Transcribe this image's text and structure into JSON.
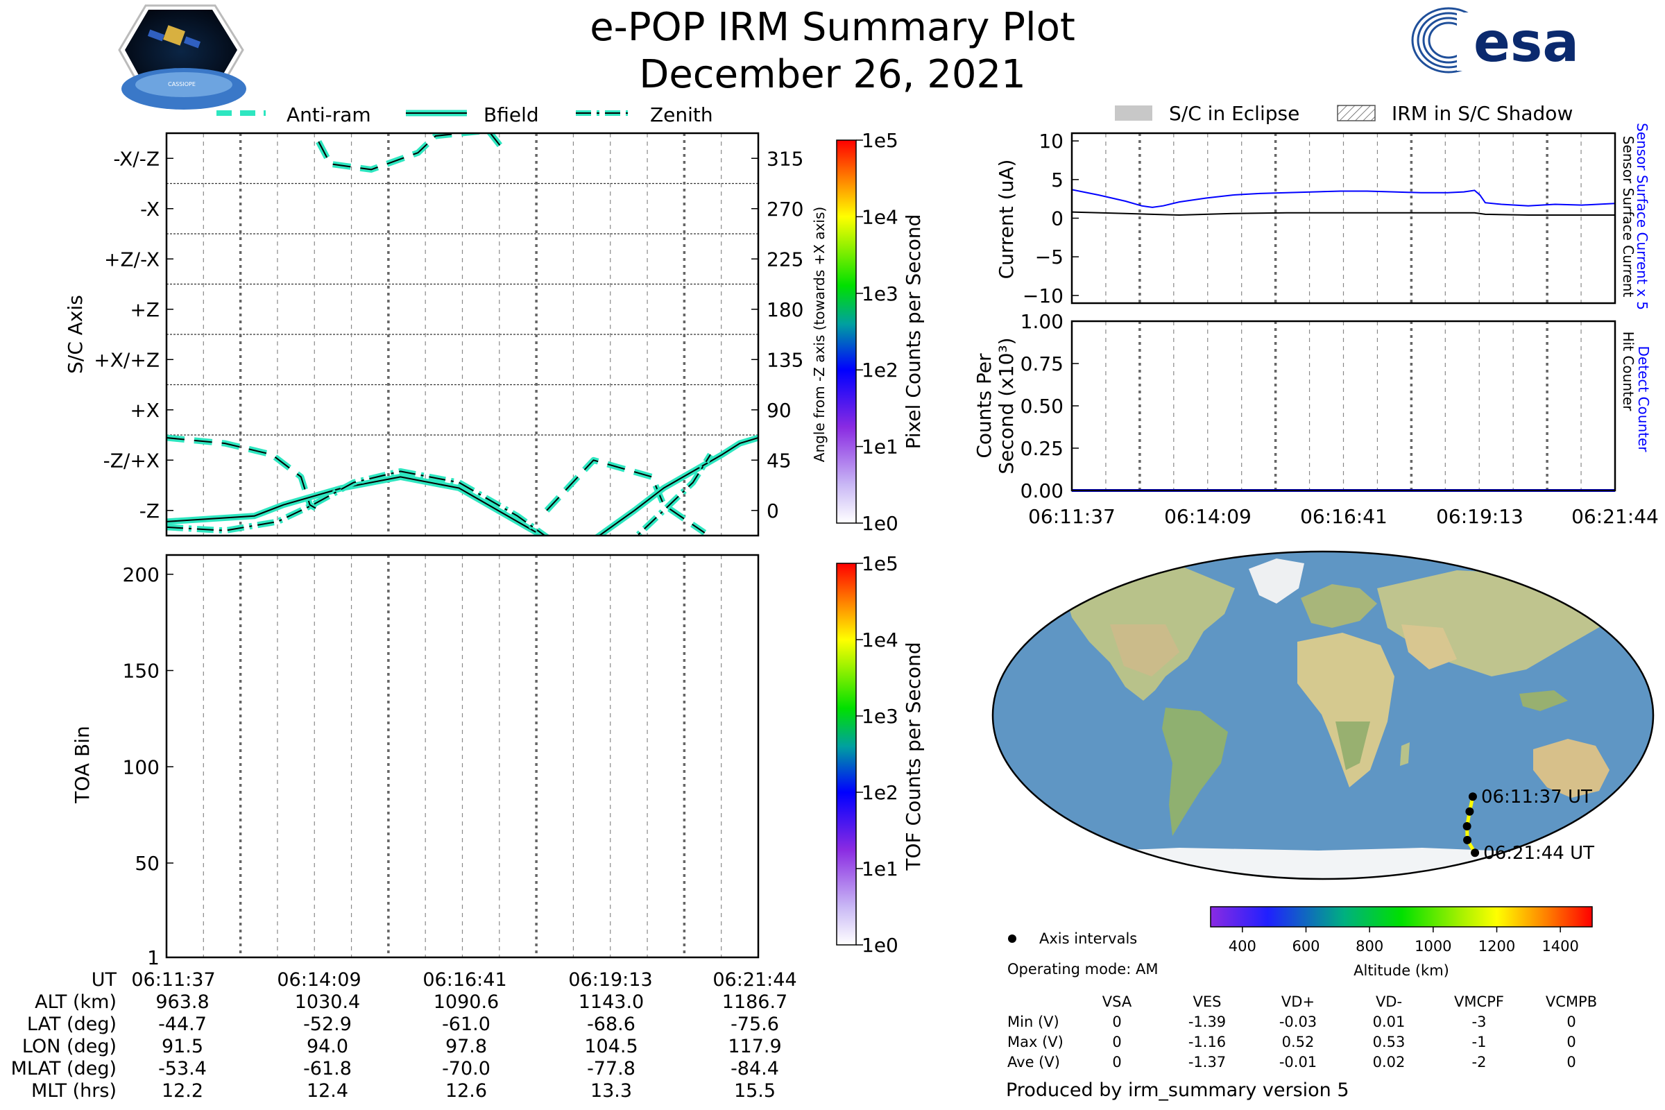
{
  "title": {
    "line1": "e-POP IRM Summary Plot",
    "line2": "December 26, 2021"
  },
  "logos": {
    "cassiope_text": "CASSIOPE",
    "esa_text": "esa"
  },
  "colors": {
    "turquoise": "#2ee6c0",
    "current_blue": "#0000ff",
    "detect_blue": "#0000ff",
    "track_yellow": "#ffff00",
    "ocean": "#6a9ec4",
    "land": "#d8d0a0",
    "ice": "#f4f6f8"
  },
  "top_legend": [
    "Anti-ram",
    "Bfield",
    "Zenith"
  ],
  "right_legend": [
    "S/C in Eclipse",
    "IRM in S/C Shadow"
  ],
  "time_ticks": [
    "06:11:37",
    "06:14:09",
    "06:16:41",
    "06:19:13",
    "06:21:44"
  ],
  "chart_data": [
    {
      "id": "sc_axis",
      "type": "line",
      "ylabel": "S/C Axis",
      "y2label": "Angle from -Z axis (towards +X axis)",
      "ylim": [
        -22.5,
        337.5
      ],
      "y_category_labels": [
        "-X/-Z",
        "-X",
        "+Z/-X",
        "+Z",
        "+X/+Z",
        "+X",
        "-Z/+X",
        "-Z"
      ],
      "y2_ticks": [
        "315",
        "270",
        "225",
        "180",
        "135",
        "90",
        "45",
        "0"
      ],
      "x_minutes": [
        0,
        10.117
      ],
      "series": [
        {
          "name": "Anti-ram",
          "style": "dashed",
          "x": [
            0,
            1.0,
            1.8,
            2.3,
            2.45,
            2.55,
            2.6,
            2.8,
            3.5,
            4.3,
            4.6,
            5.5,
            5.8,
            6.5,
            7.3,
            8.3,
            8.5,
            9.2,
            9.6,
            10.117
          ],
          "y": [
            65,
            60,
            50,
            30,
            5,
            2,
            330,
            310,
            305,
            320,
            335,
            340,
            320,
            0,
            45,
            30,
            5,
            -20,
            340,
            350
          ]
        },
        {
          "name": "Bfield",
          "style": "solid",
          "x": [
            0,
            1.5,
            2.0,
            3.0,
            4.0,
            5.0,
            6.0,
            7.0,
            7.2,
            7.6,
            8.0,
            8.5,
            9.0,
            9.5,
            9.8,
            10.117
          ],
          "y": [
            -10,
            -5,
            5,
            20,
            30,
            20,
            -10,
            -40,
            -30,
            -15,
            0,
            20,
            35,
            50,
            60,
            65
          ]
        },
        {
          "name": "Zenith",
          "style": "dashdot",
          "x": [
            0,
            1.0,
            1.9,
            2.5,
            3.2,
            4.0,
            5.0,
            6.0,
            6.8,
            7.5,
            8.0,
            8.5,
            9.0,
            9.3
          ],
          "y": [
            -15,
            -18,
            -10,
            5,
            25,
            35,
            25,
            -5,
            -35,
            -40,
            -25,
            0,
            25,
            50
          ]
        }
      ],
      "colorbar": {
        "label": "Pixel Counts per Second",
        "ticks": [
          "1e5",
          "1e4",
          "1e3",
          "1e2",
          "1e1",
          "1e0"
        ]
      }
    },
    {
      "id": "toa",
      "type": "heatmap",
      "ylabel": "TOA Bin",
      "ylim": [
        1,
        210
      ],
      "y_ticks": [
        "200",
        "150",
        "100",
        "50",
        "1"
      ],
      "values": [],
      "colorbar": {
        "label": "TOF Counts per Second",
        "ticks": [
          "1e5",
          "1e4",
          "1e3",
          "1e2",
          "1e1",
          "1e0"
        ]
      }
    },
    {
      "id": "current",
      "type": "line",
      "ylabel": "Current (uA)",
      "ylim": [
        -11,
        11
      ],
      "y_ticks": [
        "10",
        "5",
        "0",
        "−5",
        "−10"
      ],
      "right_labels": [
        "Sensor Surface Current x 5",
        "Sensor Surface Current"
      ],
      "series": [
        {
          "name": "Sensor Surface Current x 5",
          "color": "blue",
          "x": [
            0,
            0.5,
            1.0,
            1.3,
            1.5,
            1.7,
            2.0,
            2.5,
            3.0,
            3.5,
            4.0,
            4.5,
            5.0,
            5.5,
            6.0,
            6.5,
            7.0,
            7.3,
            7.5,
            7.6,
            7.7,
            8.0,
            8.5,
            9.0,
            9.5,
            10.117
          ],
          "y": [
            3.7,
            3.0,
            2.2,
            1.6,
            1.4,
            1.6,
            2.1,
            2.6,
            3.0,
            3.2,
            3.3,
            3.4,
            3.5,
            3.5,
            3.4,
            3.3,
            3.3,
            3.4,
            3.6,
            3.0,
            2.0,
            1.8,
            1.6,
            1.8,
            1.7,
            1.9
          ]
        },
        {
          "name": "Sensor Surface Current",
          "color": "black",
          "x": [
            0,
            1.0,
            2.0,
            3.0,
            4.0,
            5.0,
            6.0,
            7.0,
            7.5,
            7.7,
            8.5,
            9.5,
            10.117
          ],
          "y": [
            0.8,
            0.6,
            0.4,
            0.6,
            0.7,
            0.7,
            0.7,
            0.7,
            0.7,
            0.5,
            0.4,
            0.4,
            0.4
          ]
        }
      ]
    },
    {
      "id": "counts",
      "type": "line",
      "ylabel": "Counts Per Second (x10³)",
      "ylim": [
        0,
        1
      ],
      "y_ticks": [
        "1.00",
        "0.75",
        "0.50",
        "0.25",
        "0.00"
      ],
      "right_labels": [
        "Detect Counter",
        "Hit Counter"
      ],
      "series": [
        {
          "name": "Detect Counter",
          "color": "blue",
          "x": [
            0,
            10.117
          ],
          "y": [
            0,
            0
          ]
        },
        {
          "name": "Hit Counter",
          "color": "black",
          "x": [
            0,
            10.117
          ],
          "y": [
            0,
            0
          ]
        }
      ]
    },
    {
      "id": "map_track",
      "type": "scatter",
      "projection": "robinson",
      "points_lon": [
        91.5,
        94.0,
        97.8,
        104.5,
        117.9
      ],
      "points_lat": [
        -44.7,
        -52.9,
        -61.0,
        -68.6,
        -75.6
      ],
      "labels": [
        "06:11:37 UT",
        "06:21:44 UT"
      ],
      "altitude_colorbar": {
        "label": "Altitude (km)",
        "ticks": [
          "400",
          "600",
          "800",
          "1000",
          "1200",
          "1400"
        ],
        "range": [
          300,
          1500
        ]
      }
    }
  ],
  "legend_bottom": {
    "axis_intervals": "Axis intervals",
    "mode": "Operating mode: AM"
  },
  "voltage_table": {
    "columns": [
      "VSA",
      "VES",
      "VD+",
      "VD-",
      "VMCPF",
      "VCMPB"
    ],
    "rows": [
      {
        "label": "Min (V)",
        "values": [
          "0",
          "-1.39",
          "-0.03",
          "0.01",
          "-3",
          "0"
        ]
      },
      {
        "label": "Max (V)",
        "values": [
          "0",
          "-1.16",
          "0.52",
          "0.53",
          "-1",
          "0"
        ]
      },
      {
        "label": "Ave (V)",
        "values": [
          "0",
          "-1.37",
          "-0.01",
          "0.02",
          "-2",
          "0"
        ]
      }
    ]
  },
  "footer": "Produced by irm_summary version 5",
  "ephemeris": {
    "rows": [
      {
        "label": "UT",
        "values": [
          "06:11:37",
          "06:14:09",
          "06:16:41",
          "06:19:13",
          "06:21:44"
        ]
      },
      {
        "label": "ALT (km)",
        "values": [
          "963.8",
          "1030.4",
          "1090.6",
          "1143.0",
          "1186.7"
        ]
      },
      {
        "label": "LAT (deg)",
        "values": [
          "-44.7",
          "-52.9",
          "-61.0",
          "-68.6",
          "-75.6"
        ]
      },
      {
        "label": "LON (deg)",
        "values": [
          "91.5",
          "94.0",
          "97.8",
          "104.5",
          "117.9"
        ]
      },
      {
        "label": "MLAT (deg)",
        "values": [
          "-53.4",
          "-61.8",
          "-70.0",
          "-77.8",
          "-84.4"
        ]
      },
      {
        "label": "MLT (hrs)",
        "values": [
          "12.2",
          "12.4",
          "12.6",
          "13.3",
          "15.5"
        ]
      }
    ]
  }
}
